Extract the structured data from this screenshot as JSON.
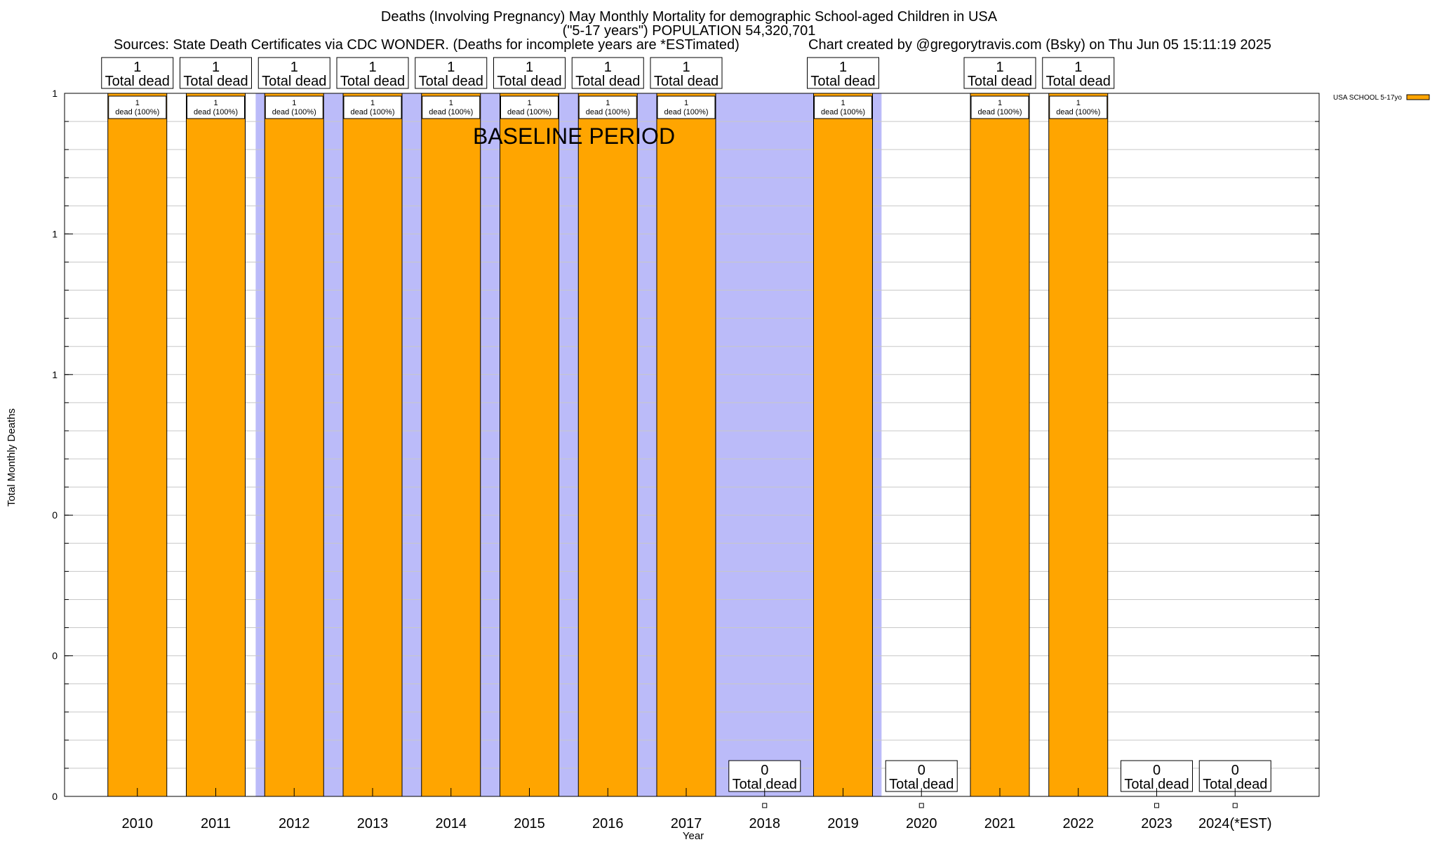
{
  "chart_data": {
    "type": "bar",
    "title": "Deaths (Involving Pregnancy) May Monthly Mortality for demographic School-aged Children in USA",
    "subtitle": "(\"5-17 years\") POPULATION 54,320,701",
    "sources": "Sources: State Death Certificates via CDC WONDER. (Deaths for incomplete years are *ESTimated)",
    "credit": "Chart created by @gregorytravis.com (Bsky) on Thu Jun 05 15:11:19 2025",
    "xlabel": "Year",
    "ylabel": "Total Monthly Deaths",
    "ylim": [
      0,
      1
    ],
    "y_tick_labels": [
      "0",
      "0",
      "0",
      "1",
      "1",
      "1"
    ],
    "grid": true,
    "legend": {
      "placement": "top-right",
      "entries": [
        "USA SCHOOL 5-17yo"
      ]
    },
    "annotation": "BASELINE PERIOD",
    "baseline_period": [
      "2012",
      "2019"
    ],
    "categories": [
      "2010",
      "2011",
      "2012",
      "2013",
      "2014",
      "2015",
      "2016",
      "2017",
      "2018",
      "2019",
      "2020",
      "2021",
      "2022",
      "2023",
      "2024(*EST)"
    ],
    "series": [
      {
        "name": "USA SCHOOL 5-17yo",
        "values": [
          1,
          1,
          1,
          1,
          1,
          1,
          1,
          1,
          0,
          1,
          0,
          1,
          1,
          0,
          0
        ]
      }
    ],
    "total_labels": [
      "1",
      "1",
      "1",
      "1",
      "1",
      "1",
      "1",
      "1",
      "0",
      "1",
      "0",
      "1",
      "1",
      "0",
      "0"
    ],
    "total_suffix": "Total dead",
    "bar_labels": [
      "1\ndead (100%)",
      "1\ndead (100%)",
      "1\ndead (100%)",
      "1\ndead (100%)",
      "1\ndead (100%)",
      "1\ndead (100%)",
      "1\ndead (100%)",
      "1\ndead (100%)",
      "",
      "1\ndead (100%)",
      "",
      "1\ndead (100%)",
      "1\ndead (100%)",
      "",
      ""
    ],
    "colors": {
      "bar": "#ffa500",
      "baseline": "#bbbbf9",
      "grid": "#c8c8c8"
    }
  }
}
